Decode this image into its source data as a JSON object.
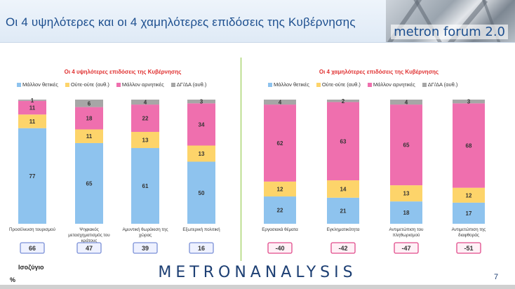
{
  "header": {
    "title": "Οι 4 υψηλότερες και οι 4 χαμηλότερες επιδόσεις της Κυβέρνησης",
    "logo": "metron forum 2.0"
  },
  "colors": {
    "positive": "#8ec3ee",
    "neutral": "#fdd46a",
    "negative": "#ef6fae",
    "dk": "#a6a6a6",
    "title_red": "#e03030",
    "balance_blue_border": "#7a8fd6",
    "balance_pink_border": "#e04a8a"
  },
  "legend": [
    {
      "label": "Μάλλον θετικές",
      "color": "#8ec3ee"
    },
    {
      "label": "Ούτε-ούτε  (αυθ.)",
      "color": "#fdd46a"
    },
    {
      "label": "Μάλλον αρνητικές",
      "color": "#ef6fae"
    },
    {
      "label": "ΔΓ/ΔΑ (αυθ.)",
      "color": "#a6a6a6"
    }
  ],
  "footer": {
    "balance_label": "Ισοζύγιο",
    "percent_label": "%",
    "brand": "METRONANALYSIS",
    "page_number": "7"
  },
  "chart_data": [
    {
      "type": "bar",
      "stacked": true,
      "title": "Οι 4 υψηλότερες επιδόσεις της Κυβέρνησης",
      "categories": [
        "Προσέλκυση τουρισμού",
        "Ψηφιακός μετασχηματισμός του κράτους",
        "Αμυντική θωράκιση της χώρας",
        "Εξωτερική πολιτική"
      ],
      "series": [
        {
          "name": "Μάλλον θετικές",
          "values": [
            77,
            65,
            61,
            50
          ]
        },
        {
          "name": "Ούτε-ούτε  (αυθ.)",
          "values": [
            11,
            11,
            13,
            13
          ]
        },
        {
          "name": "Μάλλον αρνητικές",
          "values": [
            11,
            18,
            22,
            34
          ]
        },
        {
          "name": "ΔΓ/ΔΑ (αυθ.)",
          "values": [
            1,
            6,
            4,
            3
          ]
        }
      ],
      "balance": [
        "66",
        "47",
        "39",
        "16"
      ],
      "ylim": [
        0,
        100
      ],
      "legend_position": "top"
    },
    {
      "type": "bar",
      "stacked": true,
      "title": "Οι 4 χαμηλότερες επιδόσεις της Κυβέρνησης",
      "categories": [
        "Εργασιακά θέματα",
        "Εγκληματικότητα",
        "Αντιμετώπιση του πληθωρισμού",
        "Αντιμετώπιση της διαφθοράς"
      ],
      "series": [
        {
          "name": "Μάλλον θετικές",
          "values": [
            22,
            21,
            18,
            17
          ]
        },
        {
          "name": "Ούτε-ούτε  (αυθ.)",
          "values": [
            12,
            14,
            13,
            12
          ]
        },
        {
          "name": "Μάλλον αρνητικές",
          "values": [
            62,
            63,
            65,
            68
          ]
        },
        {
          "name": "ΔΓ/ΔΑ (αυθ.)",
          "values": [
            4,
            2,
            4,
            3
          ]
        }
      ],
      "balance": [
        "-40",
        "-42",
        "-47",
        "-51"
      ],
      "ylim": [
        0,
        100
      ],
      "legend_position": "top"
    }
  ]
}
